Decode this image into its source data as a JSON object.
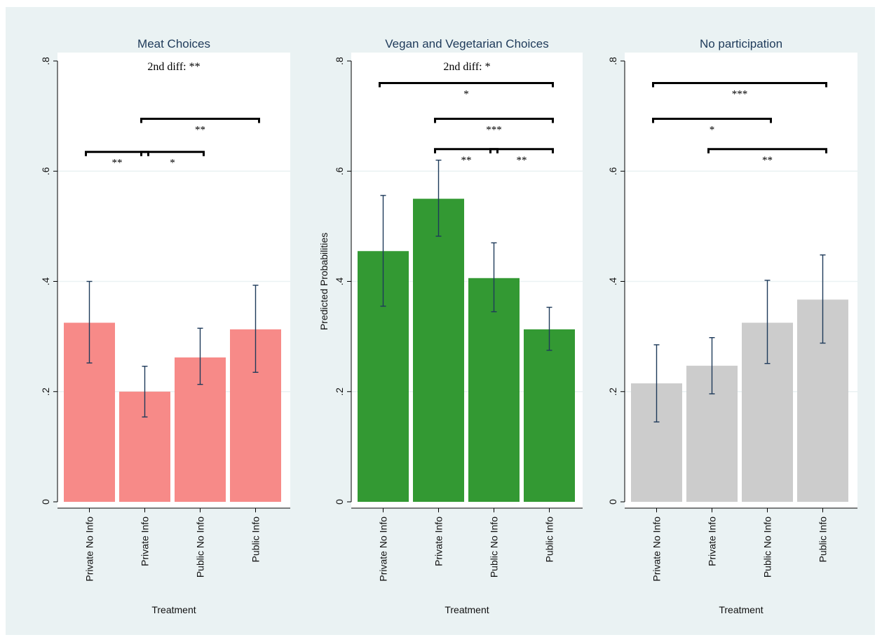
{
  "chart_data": [
    {
      "type": "bar",
      "title": "Meat Choices",
      "xlabel": "Treatment",
      "ylabel": "",
      "categories": [
        "Private No Info",
        "Private Info",
        "Public No Info",
        "Public Info"
      ],
      "values": [
        0.325,
        0.2,
        0.262,
        0.313
      ],
      "error_low": [
        0.252,
        0.154,
        0.213,
        0.235
      ],
      "error_high": [
        0.4,
        0.246,
        0.315,
        0.393
      ],
      "ylim": [
        0,
        0.8
      ],
      "yticks": [
        0,
        0.2,
        0.4,
        0.6,
        0.8
      ],
      "ytick_labels": [
        "0",
        ".2",
        ".4",
        ".6",
        ".8"
      ],
      "grid": true,
      "color": "#f78a88",
      "annotation": "2nd diff: **",
      "brackets": [
        {
          "from": 0,
          "to": 1,
          "label": "**",
          "level": 0.635
        },
        {
          "from": 1,
          "to": 2,
          "label": "*",
          "level": 0.635
        },
        {
          "from": 1,
          "to": 3,
          "label": "**",
          "level": 0.695
        }
      ]
    },
    {
      "type": "bar",
      "title": "Vegan and Vegetarian Choices",
      "xlabel": "Treatment",
      "ylabel": "Predicted Probabilities",
      "categories": [
        "Private No Info",
        "Private Info",
        "Public No Info",
        "Public Info"
      ],
      "values": [
        0.455,
        0.55,
        0.406,
        0.313
      ],
      "error_low": [
        0.355,
        0.482,
        0.345,
        0.275
      ],
      "error_high": [
        0.556,
        0.62,
        0.47,
        0.353
      ],
      "ylim": [
        0,
        0.8
      ],
      "yticks": [
        0,
        0.2,
        0.4,
        0.6,
        0.8
      ],
      "ytick_labels": [
        "0",
        ".2",
        ".4",
        ".6",
        ".8"
      ],
      "grid": true,
      "color": "#339933",
      "annotation": "2nd diff: *",
      "brackets": [
        {
          "from": 0,
          "to": 3,
          "label": "*",
          "level": 0.76
        },
        {
          "from": 1,
          "to": 3,
          "label": "***",
          "level": 0.695
        },
        {
          "from": 1,
          "to": 2,
          "label": "**",
          "level": 0.64
        },
        {
          "from": 2,
          "to": 3,
          "label": "**",
          "level": 0.64
        }
      ]
    },
    {
      "type": "bar",
      "title": "No participation",
      "xlabel": "Treatment",
      "ylabel": "",
      "categories": [
        "Private No Info",
        "Private Info",
        "Public No Info",
        "Public Info"
      ],
      "values": [
        0.215,
        0.247,
        0.325,
        0.367
      ],
      "error_low": [
        0.145,
        0.196,
        0.251,
        0.288
      ],
      "error_high": [
        0.285,
        0.298,
        0.402,
        0.448
      ],
      "ylim": [
        0,
        0.8
      ],
      "yticks": [
        0,
        0.2,
        0.4,
        0.6,
        0.8
      ],
      "ytick_labels": [
        "0",
        ".2",
        ".4",
        ".6",
        ".8"
      ],
      "grid": true,
      "color": "#cccccc",
      "annotation": "",
      "brackets": [
        {
          "from": 0,
          "to": 3,
          "label": "***",
          "level": 0.76
        },
        {
          "from": 0,
          "to": 2,
          "label": "*",
          "level": 0.695
        },
        {
          "from": 1,
          "to": 3,
          "label": "**",
          "level": 0.64
        }
      ]
    }
  ],
  "colors": {
    "background": "#eaf2f3",
    "plot_background": "#ffffff",
    "grid": "#eaf2f3",
    "error_bar": "#1e3a5a",
    "title": "#1e3a5a"
  }
}
